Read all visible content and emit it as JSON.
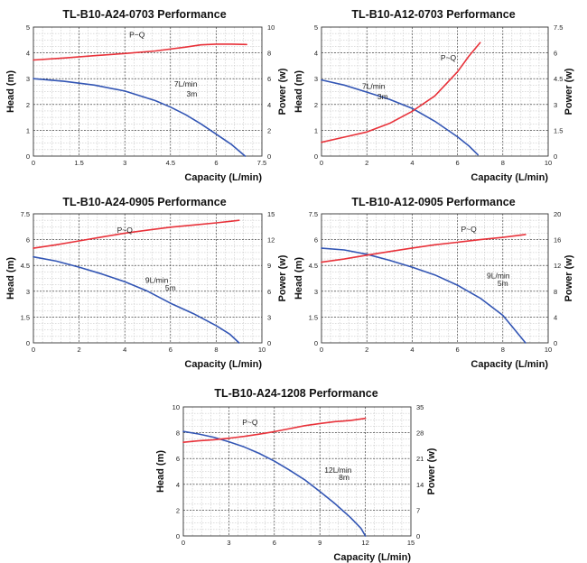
{
  "colors": {
    "head_curve": "#3255b4",
    "power_curve": "#e8323a",
    "grid_minor": "#bcbcbc",
    "grid_major": "#222222",
    "frame": "#333333"
  },
  "chart_data": [
    {
      "type": "line",
      "title": "TL-B10-A24-0703 Performance",
      "xlabel": "Capacity (L/min)",
      "ylabel": "Head (m)",
      "y2label": "Power (w)",
      "xlim": [
        0,
        7.5
      ],
      "ylim": [
        0,
        5
      ],
      "y2lim": [
        0,
        10
      ],
      "x_ticks": [
        "0",
        "1.5",
        "3",
        "4.5",
        "6",
        "7.5"
      ],
      "y_ticks": [
        "0",
        "1",
        "2",
        "3",
        "4",
        "5"
      ],
      "y2_ticks": [
        "0",
        "2",
        "4",
        "6",
        "8",
        "10"
      ],
      "grid": true,
      "annotations": {
        "power_label": "P~Q",
        "rated_flow": "7L/min",
        "rated_head": "3m"
      },
      "series": [
        {
          "axis": "left",
          "x": [
            0,
            1,
            2,
            3,
            4,
            4.5,
            5,
            5.5,
            6,
            6.5,
            6.95
          ],
          "y": [
            3.0,
            2.9,
            2.75,
            2.52,
            2.15,
            1.9,
            1.6,
            1.25,
            0.85,
            0.45,
            0.0
          ]
        },
        {
          "axis": "right",
          "x": [
            0,
            1,
            2,
            3,
            4,
            5,
            5.5,
            6,
            6.5,
            7
          ],
          "y": [
            7.45,
            7.6,
            7.78,
            7.95,
            8.15,
            8.45,
            8.62,
            8.68,
            8.68,
            8.65
          ]
        }
      ]
    },
    {
      "type": "line",
      "title": "TL-B10-A12-0703 Performance",
      "xlabel": "Capacity (L/min)",
      "ylabel": "Head (m)",
      "y2label": "Power (w)",
      "xlim": [
        0,
        10
      ],
      "ylim": [
        0,
        5
      ],
      "y2lim": [
        0,
        7.5
      ],
      "x_ticks": [
        "0",
        "2",
        "4",
        "6",
        "8",
        "10"
      ],
      "y_ticks": [
        "0",
        "1",
        "2",
        "3",
        "4",
        "5"
      ],
      "y2_ticks": [
        "0",
        "1.5",
        "3",
        "4.5",
        "6",
        "7.5"
      ],
      "grid": true,
      "annotations": {
        "power_label": "P~Q",
        "rated_flow": "7L/min",
        "rated_head": "3m"
      },
      "series": [
        {
          "axis": "left",
          "x": [
            0,
            1,
            2,
            3,
            4,
            5,
            6,
            6.5,
            6.9
          ],
          "y": [
            2.95,
            2.75,
            2.48,
            2.2,
            1.85,
            1.35,
            0.75,
            0.4,
            0.05
          ]
        },
        {
          "axis": "right",
          "x": [
            0,
            1,
            2,
            3,
            4,
            5,
            5.5,
            6,
            6.5,
            7
          ],
          "y": [
            0.8,
            1.1,
            1.4,
            1.9,
            2.6,
            3.5,
            4.2,
            4.9,
            5.8,
            6.6
          ]
        }
      ]
    },
    {
      "type": "line",
      "title": "TL-B10-A24-0905 Performance",
      "xlabel": "Capacity (L/min)",
      "ylabel": "Head (m)",
      "y2label": "Power (w)",
      "xlim": [
        0,
        10
      ],
      "ylim": [
        0,
        7.5
      ],
      "y2lim": [
        0,
        15
      ],
      "x_ticks": [
        "0",
        "2",
        "4",
        "6",
        "8",
        "10"
      ],
      "y_ticks": [
        "0",
        "1.5",
        "3",
        "4.5",
        "6",
        "7.5"
      ],
      "y2_ticks": [
        "0",
        "3",
        "6",
        "9",
        "12",
        "15"
      ],
      "grid": true,
      "annotations": {
        "power_label": "P~Q",
        "rated_flow": "9L/min",
        "rated_head": "5m"
      },
      "series": [
        {
          "axis": "left",
          "x": [
            0,
            1,
            2,
            3,
            4,
            5,
            6,
            7,
            8,
            8.6,
            9.0
          ],
          "y": [
            5.0,
            4.75,
            4.4,
            4.0,
            3.55,
            3.0,
            2.3,
            1.7,
            1.0,
            0.5,
            0.0
          ]
        },
        {
          "axis": "right",
          "x": [
            0,
            1,
            2,
            3,
            4,
            5,
            6,
            7,
            8,
            9
          ],
          "y": [
            11.0,
            11.4,
            11.85,
            12.3,
            12.75,
            13.1,
            13.45,
            13.7,
            13.95,
            14.25
          ]
        }
      ]
    },
    {
      "type": "line",
      "title": "TL-B10-A12-0905 Performance",
      "xlabel": "Capacity (L/min)",
      "ylabel": "Head (m)",
      "y2label": "Power (w)",
      "xlim": [
        0,
        10
      ],
      "ylim": [
        0,
        7.5
      ],
      "y2lim": [
        0,
        20
      ],
      "x_ticks": [
        "0",
        "2",
        "4",
        "6",
        "8",
        "10"
      ],
      "y_ticks": [
        "0",
        "1.5",
        "3",
        "4.5",
        "6",
        "7.5"
      ],
      "y2_ticks": [
        "0",
        "4",
        "8",
        "12",
        "16",
        "20"
      ],
      "grid": true,
      "annotations": {
        "power_label": "P~Q",
        "rated_flow": "9L/min",
        "rated_head": "5m"
      },
      "series": [
        {
          "axis": "left",
          "x": [
            0,
            1,
            2,
            3,
            4,
            5,
            6,
            7,
            8,
            8.5,
            9.0
          ],
          "y": [
            5.5,
            5.4,
            5.15,
            4.8,
            4.4,
            3.95,
            3.35,
            2.6,
            1.6,
            0.8,
            0.0
          ]
        },
        {
          "axis": "right",
          "x": [
            0,
            1,
            2,
            3,
            4,
            5,
            6,
            7,
            8,
            9
          ],
          "y": [
            12.5,
            13.0,
            13.6,
            14.15,
            14.7,
            15.2,
            15.6,
            16.0,
            16.35,
            16.8
          ]
        }
      ]
    },
    {
      "type": "line",
      "title": "TL-B10-A24-1208 Performance",
      "xlabel": "Capacity (L/min)",
      "ylabel": "Head (m)",
      "y2label": "Power (w)",
      "xlim": [
        0,
        15
      ],
      "ylim": [
        0,
        10
      ],
      "y2lim": [
        0,
        35
      ],
      "x_ticks": [
        "0",
        "3",
        "6",
        "9",
        "12",
        "15"
      ],
      "y_ticks": [
        "0",
        "2",
        "4",
        "6",
        "8",
        "10"
      ],
      "y2_ticks": [
        "0",
        "7",
        "14",
        "21",
        "28",
        "35"
      ],
      "grid": true,
      "annotations": {
        "power_label": "P~Q",
        "rated_flow": "12L/min",
        "rated_head": "8m"
      },
      "series": [
        {
          "axis": "left",
          "x": [
            0,
            1,
            2,
            3,
            4,
            5,
            6,
            7,
            8,
            9,
            10,
            11,
            11.7,
            12.0
          ],
          "y": [
            8.1,
            7.9,
            7.65,
            7.3,
            6.9,
            6.4,
            5.8,
            5.1,
            4.35,
            3.45,
            2.5,
            1.45,
            0.6,
            0.0
          ]
        },
        {
          "axis": "right",
          "x": [
            0,
            1,
            2,
            3,
            4,
            5,
            6,
            7,
            8,
            9,
            10,
            11,
            12
          ],
          "y": [
            25.4,
            25.8,
            26.1,
            26.5,
            27.0,
            27.6,
            28.3,
            29.1,
            29.9,
            30.5,
            31.0,
            31.3,
            31.9
          ]
        }
      ]
    }
  ]
}
